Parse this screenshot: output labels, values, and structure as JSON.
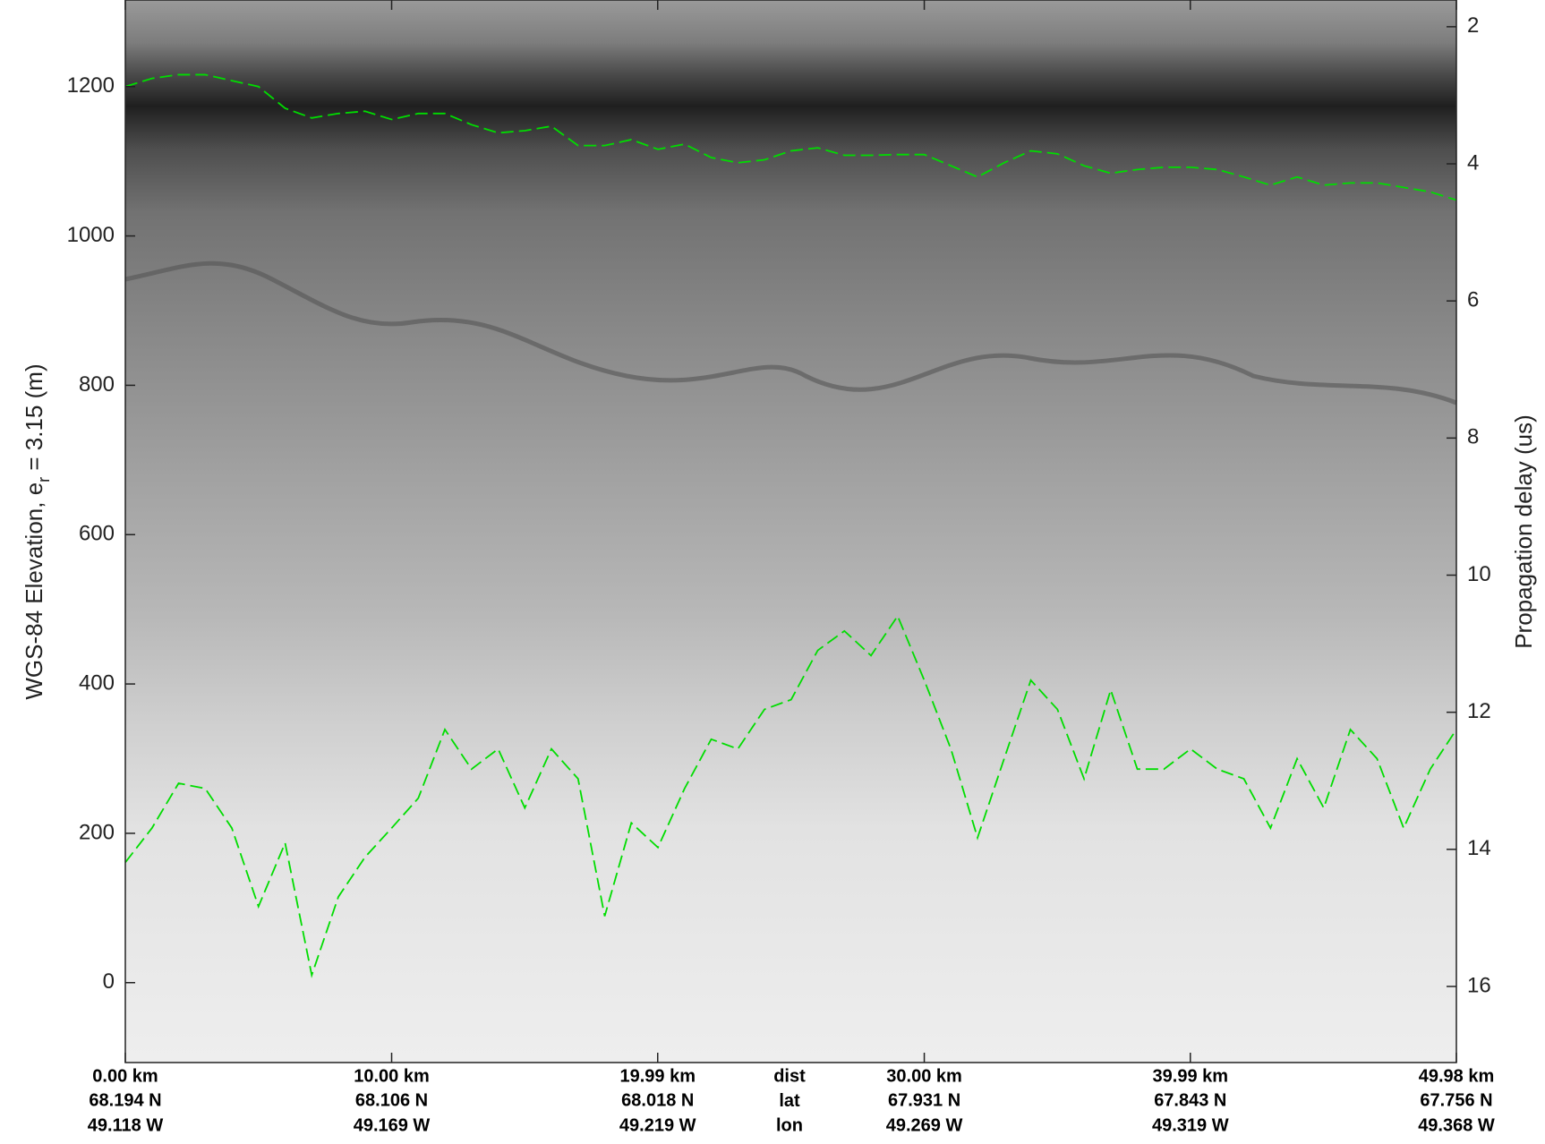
{
  "chart_data": {
    "type": "echogram",
    "ylabel": [
      "WGS-84 Elevation, e",
      "r",
      " = 3.15 (m)"
    ],
    "y2label": "Propagation delay (us)",
    "x": [
      0,
      1,
      2,
      3,
      4,
      5,
      6,
      7,
      8,
      9,
      10,
      11,
      12,
      13,
      14,
      15,
      16,
      17,
      18,
      19,
      20,
      21,
      22,
      23,
      24,
      25,
      26,
      27,
      28,
      29,
      30,
      31,
      32,
      33,
      34,
      35,
      36,
      37,
      38,
      39,
      40,
      41,
      42,
      43,
      44,
      45,
      46,
      47,
      48,
      49,
      49.98
    ],
    "series": [
      {
        "color": "#00dd00",
        "dashed": true,
        "values": [
          1200,
          1211,
          1216,
          1216,
          1208,
          1200,
          1171,
          1158,
          1164,
          1167,
          1156,
          1164,
          1164,
          1149,
          1138,
          1141,
          1147,
          1121,
          1121,
          1129,
          1116,
          1123,
          1105,
          1098,
          1102,
          1114,
          1118,
          1108,
          1108,
          1109,
          1109,
          1094,
          1079,
          1098,
          1114,
          1110,
          1094,
          1084,
          1089,
          1092,
          1092,
          1089,
          1079,
          1068,
          1079,
          1068,
          1071,
          1071,
          1065,
          1059,
          1048
        ]
      },
      {
        "color": "#00dd00",
        "dashed": true,
        "values": [
          161,
          207,
          267,
          260,
          207,
          102,
          187,
          10,
          115,
          168,
          207,
          247,
          339,
          286,
          313,
          234,
          313,
          273,
          89,
          214,
          181,
          260,
          326,
          313,
          366,
          379,
          445,
          471,
          438,
          491,
          405,
          313,
          194,
          300,
          405,
          366,
          273,
          392,
          286,
          286,
          313,
          286,
          273,
          207,
          300,
          234,
          339,
          300,
          207,
          286,
          339
        ]
      }
    ],
    "xlim": [
      0,
      49.98
    ],
    "xticks": [
      {
        "value": 0,
        "label": "0.00 km"
      },
      {
        "value": 10,
        "label": "10.00 km"
      },
      {
        "value": 19.99,
        "label": "19.99 km"
      },
      {
        "value": 30,
        "label": "30.00 km"
      },
      {
        "value": 39.99,
        "label": "39.99 km"
      },
      {
        "value": 49.98,
        "label": "49.98 km"
      }
    ],
    "lat_labels": [
      "68.194 N",
      "68.106 N",
      "68.018 N",
      "67.931 N",
      "67.843 N",
      "67.756 N"
    ],
    "lon_labels": [
      "49.118 W",
      "49.169 W",
      "49.219 W",
      "49.269 W",
      "49.319 W",
      "49.368 W"
    ],
    "row_labels": [
      "dist",
      "lat",
      "lon"
    ],
    "ylim": [
      -107,
      1316
    ],
    "yticks": [
      0,
      200,
      400,
      600,
      800,
      1000,
      1200
    ],
    "y2lim": [
      17.11,
      1.61
    ],
    "y2ticks": [
      2,
      4,
      6,
      8,
      10,
      12,
      14,
      16
    ]
  }
}
